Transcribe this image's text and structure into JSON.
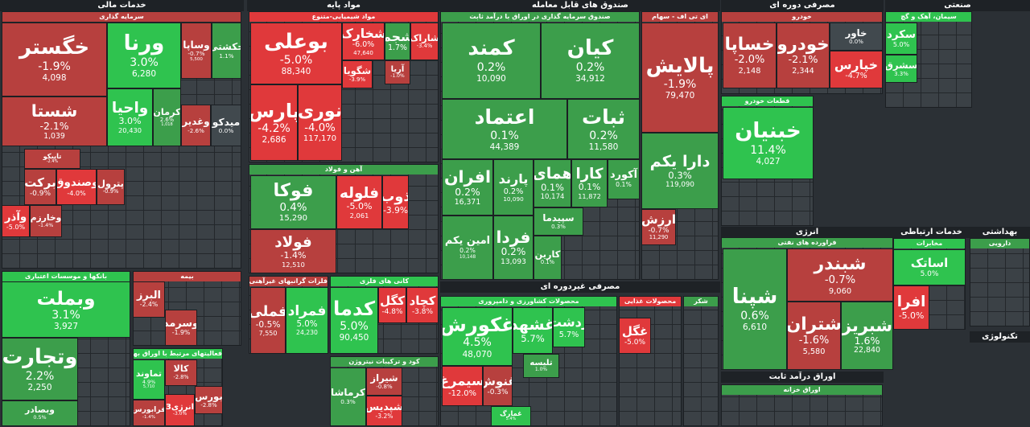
{
  "groups": [
    {
      "title": "خدمات مالی"
    },
    {
      "title": "مواد پایه"
    },
    {
      "title": "صندوق های قابل معامله"
    },
    {
      "title": "مصرفی دوره ای"
    },
    {
      "title": "صنعتی"
    },
    {
      "title": "مصرفی غیردوره ای"
    },
    {
      "title": "انرژی"
    },
    {
      "title": "اوراق درآمد ثابت"
    },
    {
      "title": "خدمات ارتباطی"
    },
    {
      "title": "بهداشتی"
    },
    {
      "title": "تکنولوژی"
    }
  ],
  "sectors": [
    {
      "title": "سرمایه گذاری",
      "tiles": [
        {
          "name": "خگستر",
          "change": "-1.9%",
          "volume": "4,098"
        },
        {
          "name": "ورنا",
          "change": "3.0%",
          "volume": "6,280"
        },
        {
          "name": "وساپا",
          "change": "-0.7%",
          "volume": "5,500"
        },
        {
          "name": "حکشتی",
          "change": "1.1%"
        },
        {
          "name": "شستا",
          "change": "-2.1%",
          "volume": "1,039"
        },
        {
          "name": "واحیا",
          "change": "3.0%",
          "volume": "20,430"
        },
        {
          "name": "کرمان",
          "change": "2.6%",
          "volume": "1,018"
        },
        {
          "name": "وغدیر",
          "change": "-2.6%"
        },
        {
          "name": "میدکو",
          "change": "0.0%"
        },
        {
          "name": "تاپیکو",
          "change": "-2.4%"
        },
        {
          "name": "برکت",
          "change": "-0.9%"
        },
        {
          "name": "وصندوق",
          "change": "-4.0%"
        },
        {
          "name": "پترول",
          "change": "-0.9%"
        },
        {
          "name": "وآذر",
          "change": "-5.0%"
        },
        {
          "name": "وخارزم",
          "change": "-1.4%"
        }
      ]
    },
    {
      "title": "بانکها و موسسات اعتباری",
      "tiles": [
        {
          "name": "وبملت",
          "change": "3.1%",
          "volume": "3,927"
        },
        {
          "name": "وتجارت",
          "change": "2.2%",
          "volume": "2,250"
        },
        {
          "name": "وبصادر",
          "change": "0.5%"
        }
      ]
    },
    {
      "title": "بیمه",
      "tiles": [
        {
          "name": "البرز",
          "change": "-2.4%"
        },
        {
          "name": "وسرمد",
          "change": "-1.9%"
        }
      ]
    },
    {
      "title": "فعالیتهای مرتبط با اوراق بهادار",
      "tiles": [
        {
          "name": "تماوند",
          "change": "4.9%",
          "volume": "5,710"
        },
        {
          "name": "کالا",
          "change": "-2.8%"
        },
        {
          "name": "فرابورس",
          "change": "-1.4%"
        },
        {
          "name": "انرژی3",
          "change": "-3.0%"
        },
        {
          "name": "بورس",
          "change": "-2.8%"
        }
      ]
    },
    {
      "title": "مواد شیمیایی-متنوع",
      "tiles": [
        {
          "name": "بوعلی",
          "change": "-5.0%",
          "volume": "88,340"
        },
        {
          "name": "پارس",
          "change": "-4.2%",
          "volume": "2,686"
        },
        {
          "name": "نوری",
          "change": "-4.0%",
          "volume": "117,170"
        },
        {
          "name": "شخارک",
          "change": "-6.0%",
          "volume": "47,640"
        },
        {
          "name": "شگویا",
          "change": "-3.9%"
        },
        {
          "name": "شجم",
          "change": "1.7%"
        },
        {
          "name": "شاراک",
          "change": "-3.4%"
        },
        {
          "name": "آریا",
          "change": "-1.0%"
        }
      ]
    },
    {
      "title": "آهن و فولاد",
      "tiles": [
        {
          "name": "فوکا",
          "change": "0.4%",
          "volume": "15,290"
        },
        {
          "name": "فلوله",
          "change": "-5.0%",
          "volume": "2,061"
        },
        {
          "name": "ذوب",
          "change": "-3.9%"
        },
        {
          "name": "فولاد",
          "change": "-1.4%",
          "volume": "12,510"
        }
      ]
    },
    {
      "title": "فلزات گرانبهای غیرآهنی",
      "tiles": [
        {
          "name": "فملی",
          "change": "-0.5%",
          "volume": "7,550"
        },
        {
          "name": "فمراد",
          "change": "5.0%",
          "volume": "24,230"
        }
      ]
    },
    {
      "title": "کانی های فلزی",
      "tiles": [
        {
          "name": "کدما",
          "change": "5.0%",
          "volume": "90,450"
        },
        {
          "name": "کگل",
          "change": "-4.8%"
        },
        {
          "name": "کچاد",
          "change": "-3.8%"
        }
      ]
    },
    {
      "title": "کود و ترکیبات نیتروژن",
      "tiles": [
        {
          "name": "کرماشا",
          "change": "0.3%"
        },
        {
          "name": "شیراز",
          "change": "-0.8%"
        },
        {
          "name": "شپدیس",
          "change": "-3.2%"
        }
      ]
    },
    {
      "title": "صندوق سرمایه گذاری در اوراق با درآمد ثابت",
      "tiles": [
        {
          "name": "کمند",
          "change": "0.2%",
          "volume": "10,090"
        },
        {
          "name": "کیان",
          "change": "0.2%",
          "volume": "34,912"
        },
        {
          "name": "اعتماد",
          "change": "0.1%",
          "volume": "44,389"
        },
        {
          "name": "ثبات",
          "change": "0.2%",
          "volume": "11,580"
        },
        {
          "name": "افران",
          "change": "0.2%",
          "volume": "16,371"
        },
        {
          "name": "پارند",
          "change": "0.2%",
          "volume": "10,090"
        },
        {
          "name": "همای",
          "change": "0.1%",
          "volume": "10,174"
        },
        {
          "name": "کارا",
          "change": "0.1%",
          "volume": "11,872"
        },
        {
          "name": "آکورد",
          "change": "0.1%"
        },
        {
          "name": "سپیدما",
          "change": "0.3%"
        },
        {
          "name": "امین یکم",
          "change": "0.2%",
          "volume": "10,148"
        },
        {
          "name": "فردا",
          "change": "0.2%",
          "volume": "13,093"
        },
        {
          "name": "کارین",
          "change": "0.1%"
        }
      ]
    },
    {
      "title": "ای تی اف - سهام",
      "tiles": [
        {
          "name": "پالایش",
          "change": "-1.9%",
          "volume": "79,470"
        },
        {
          "name": "دارا یکم",
          "change": "0.3%",
          "volume": "119,090"
        },
        {
          "name": "ارزش",
          "change": "-0.7%",
          "volume": "11,290"
        }
      ]
    },
    {
      "title": "محصولات کشاورزی و دامپروری",
      "tiles": [
        {
          "name": "غکورش",
          "change": "4.5%",
          "volume": "48,070"
        },
        {
          "name": "غشهد",
          "change": "5.7%"
        },
        {
          "name": "زدشت",
          "change": "5.7%"
        },
        {
          "name": "تلیسه",
          "change": "1.0%"
        },
        {
          "name": "سیمرغ",
          "change": "-12.0%"
        },
        {
          "name": "غنوش",
          "change": "-0.3%"
        },
        {
          "name": "غمارگ",
          "change": "5.4%"
        }
      ]
    },
    {
      "title": "محصولات غذایی",
      "tiles": [
        {
          "name": "غگل",
          "change": "-5.0%"
        }
      ]
    },
    {
      "title": "شکر",
      "tiles": []
    },
    {
      "title": "خودرو",
      "tiles": [
        {
          "name": "خساپا",
          "change": "-2.0%",
          "volume": "2,148"
        },
        {
          "name": "خودرو",
          "change": "-2.1%",
          "volume": "2,344"
        },
        {
          "name": "خاور",
          "change": "0.0%"
        },
        {
          "name": "خپارس",
          "change": "-4.7%"
        }
      ]
    },
    {
      "title": "قطعات خودرو",
      "tiles": [
        {
          "name": "خبنیان",
          "change": "11.4%",
          "volume": "4,027"
        }
      ]
    },
    {
      "title": "فراورده های نفتی",
      "tiles": [
        {
          "name": "شپنا",
          "change": "0.6%",
          "volume": "6,610"
        },
        {
          "name": "شبندر",
          "change": "-0.7%",
          "volume": "9,060"
        },
        {
          "name": "شتران",
          "change": "-1.6%",
          "volume": "5,580"
        },
        {
          "name": "شبریز",
          "change": "1.6%",
          "volume": "22,840"
        }
      ]
    },
    {
      "title": "اوراق خزانه",
      "tiles": []
    },
    {
      "title": "سیمان، آهک و گچ",
      "tiles": [
        {
          "name": "سکرد",
          "change": "5.0%"
        },
        {
          "name": "سشرق",
          "change": "3.3%"
        }
      ]
    },
    {
      "title": "مخابرات",
      "tiles": [
        {
          "name": "اساتک",
          "change": "5.0%"
        },
        {
          "name": "افرا",
          "change": "-5.0%"
        }
      ]
    },
    {
      "title": "دارویی",
      "tiles": []
    }
  ]
}
